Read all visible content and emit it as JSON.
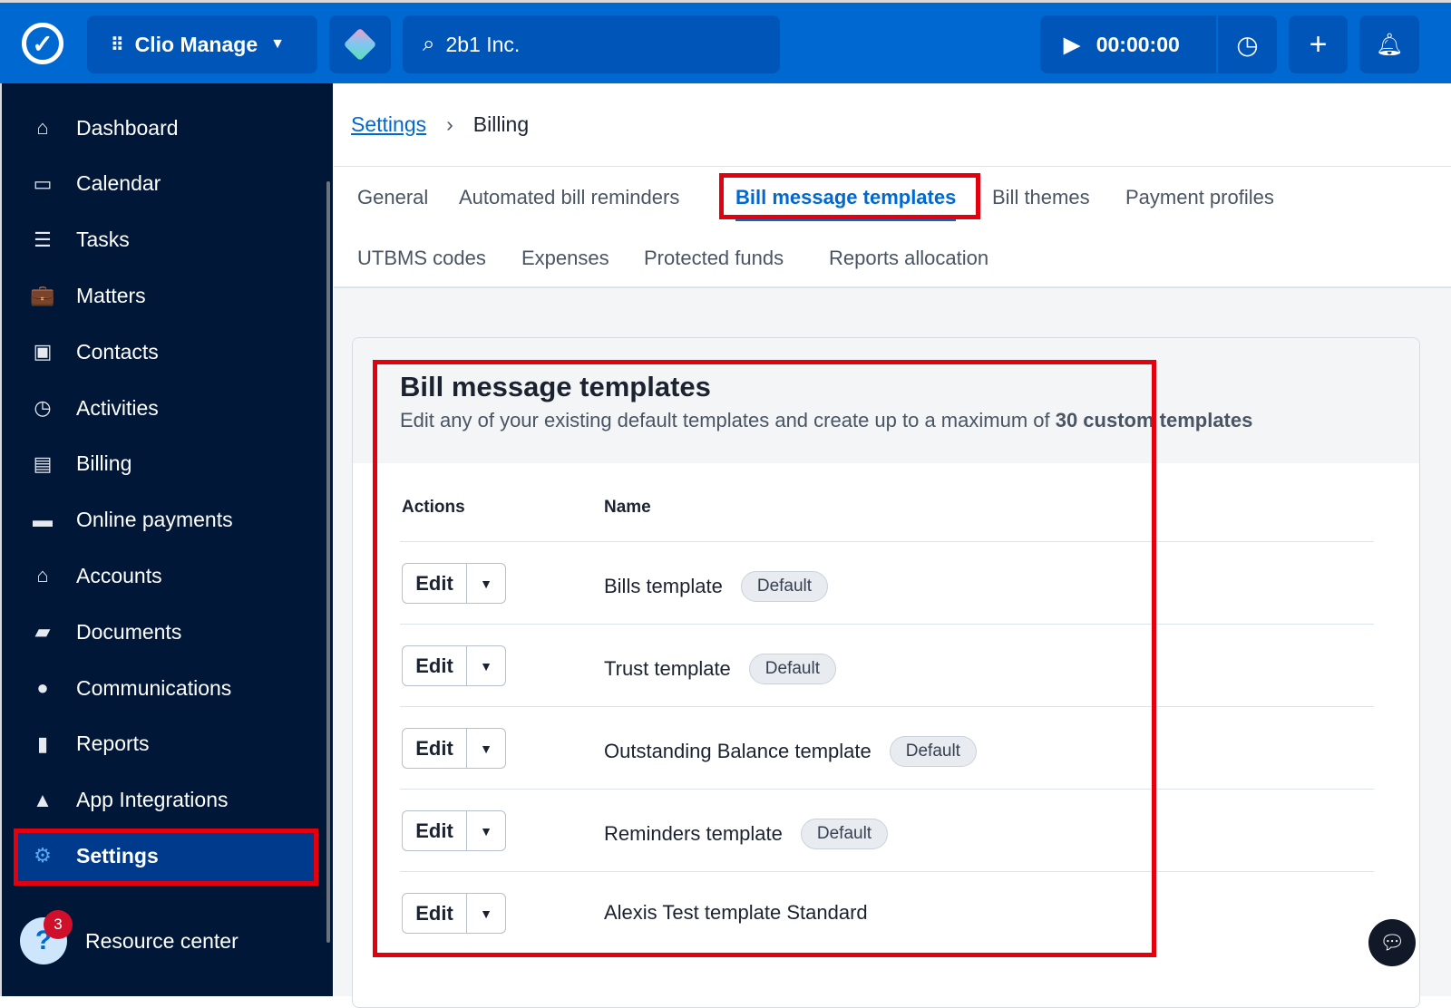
{
  "topbar": {
    "app_switcher": "Clio Manage",
    "search_value": "2b1 Inc.",
    "timer": "00:00:00"
  },
  "sidebar": {
    "items": [
      {
        "label": "Dashboard",
        "icon": "home-icon",
        "glyph": "⌂"
      },
      {
        "label": "Calendar",
        "icon": "calendar-icon",
        "glyph": "▭"
      },
      {
        "label": "Tasks",
        "icon": "list-icon",
        "glyph": "☰"
      },
      {
        "label": "Matters",
        "icon": "briefcase-icon",
        "glyph": "💼"
      },
      {
        "label": "Contacts",
        "icon": "contact-card-icon",
        "glyph": "▣"
      },
      {
        "label": "Activities",
        "icon": "clock-icon",
        "glyph": "◷"
      },
      {
        "label": "Billing",
        "icon": "receipt-icon",
        "glyph": "▤"
      },
      {
        "label": "Online payments",
        "icon": "credit-card-icon",
        "glyph": "▬"
      },
      {
        "label": "Accounts",
        "icon": "bank-icon",
        "glyph": "⌂"
      },
      {
        "label": "Documents",
        "icon": "folder-icon",
        "glyph": "▰"
      },
      {
        "label": "Communications",
        "icon": "chat-icon",
        "glyph": "●"
      },
      {
        "label": "Reports",
        "icon": "bar-chart-icon",
        "glyph": "▮"
      },
      {
        "label": "App Integrations",
        "icon": "shapes-icon",
        "glyph": "▲"
      },
      {
        "label": "Settings",
        "icon": "gear-icon",
        "glyph": "⚙",
        "active": true
      }
    ],
    "resource_center": "Resource center",
    "resource_badge": "3"
  },
  "breadcrumb": {
    "root": "Settings",
    "current": "Billing"
  },
  "tabs": [
    "General",
    "Automated bill reminders",
    "Bill message templates",
    "Bill themes",
    "Payment profiles",
    "UTBMS codes",
    "Expenses",
    "Protected funds",
    "Reports allocation"
  ],
  "active_tab": "Bill message templates",
  "card": {
    "title": "Bill message templates",
    "desc_pre": "Edit any of your existing default templates and create up to a maximum of ",
    "desc_bold": "30 custom templates",
    "columns": [
      "Actions",
      "Name"
    ],
    "edit_label": "Edit",
    "rows": [
      {
        "name": "Bills template",
        "badge": "Default"
      },
      {
        "name": "Trust template",
        "badge": "Default"
      },
      {
        "name": "Outstanding Balance template",
        "badge": "Default"
      },
      {
        "name": "Reminders template",
        "badge": "Default"
      },
      {
        "name": "Alexis Test template Standard",
        "badge": ""
      }
    ]
  },
  "colors": {
    "topbar": "#0069d1",
    "sidebar": "#001738",
    "accent": "#0069d1",
    "annotation": "#e3000f"
  }
}
